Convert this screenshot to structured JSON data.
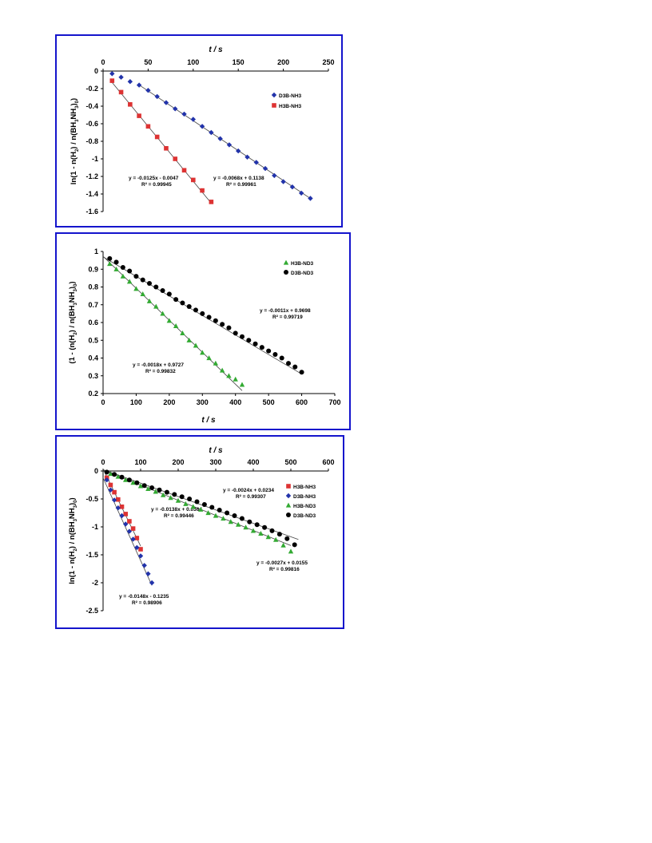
{
  "chart_data": [
    {
      "type": "scatter",
      "xlabel": "t / s",
      "ylabel": "ln(1 - n(H2) / n(BH3NH3)0)",
      "xlim": [
        0,
        250
      ],
      "ylim": [
        -1.6,
        0
      ],
      "x_ticks": [
        "0",
        "50",
        "100",
        "150",
        "200",
        "250"
      ],
      "y_ticks": [
        "0",
        "-0.2",
        "-0.4",
        "-0.6",
        "-0.8",
        "-1",
        "-1.2",
        "-1.4",
        "-1.6"
      ],
      "x_axis_position": "top",
      "legend_position": "right",
      "series": [
        {
          "name": "D3B-NH3",
          "color": "#2233aa",
          "marker": "diamond",
          "x": [
            10,
            20,
            30,
            40,
            50,
            60,
            70,
            80,
            90,
            100,
            110,
            120,
            130,
            140,
            150,
            160,
            170,
            180,
            190,
            200,
            210,
            220,
            230
          ],
          "y": [
            -0.03,
            -0.07,
            -0.12,
            -0.16,
            -0.22,
            -0.29,
            -0.36,
            -0.43,
            -0.49,
            -0.55,
            -0.63,
            -0.7,
            -0.77,
            -0.84,
            -0.91,
            -0.98,
            -1.04,
            -1.11,
            -1.19,
            -1.26,
            -1.32,
            -1.39,
            -1.45
          ],
          "fit": {
            "slope": -0.0068,
            "intercept": 0.1138,
            "x_range": [
              40,
              230
            ],
            "label": "y = -0.0068x + 0.1138",
            "r2": "R² = 0.99961"
          }
        },
        {
          "name": "H3B-NH3",
          "color": "#dd3333",
          "marker": "square",
          "x": [
            10,
            20,
            30,
            40,
            50,
            60,
            70,
            80,
            90,
            100,
            110,
            120
          ],
          "y": [
            -0.11,
            -0.24,
            -0.38,
            -0.51,
            -0.63,
            -0.75,
            -0.88,
            -1.0,
            -1.13,
            -1.24,
            -1.36,
            -1.49
          ],
          "fit": {
            "slope": -0.0125,
            "intercept": -0.0047,
            "x_range": [
              10,
              120
            ],
            "label": "y = -0.0125x - 0.0047",
            "r2": "R² = 0.99945"
          }
        }
      ]
    },
    {
      "type": "scatter",
      "xlabel": "t / s",
      "ylabel": "(1 - (n(H2) / n(BH3NH3)0)",
      "xlim": [
        0,
        700
      ],
      "ylim": [
        0.2,
        1
      ],
      "x_ticks": [
        "0",
        "100",
        "200",
        "300",
        "400",
        "500",
        "600",
        "700"
      ],
      "y_ticks": [
        "1",
        "0.9",
        "0.8",
        "0.7",
        "0.6",
        "0.5",
        "0.4",
        "0.3",
        "0.2"
      ],
      "x_axis_position": "bottom",
      "legend_position": "top-right",
      "series": [
        {
          "name": "H3B-ND3",
          "color": "#33aa33",
          "marker": "triangle",
          "x": [
            20,
            40,
            60,
            80,
            100,
            120,
            140,
            160,
            180,
            200,
            220,
            240,
            260,
            280,
            300,
            320,
            340,
            360,
            380,
            400,
            420
          ],
          "y": [
            0.93,
            0.9,
            0.86,
            0.83,
            0.79,
            0.76,
            0.72,
            0.69,
            0.65,
            0.61,
            0.58,
            0.54,
            0.5,
            0.47,
            0.43,
            0.4,
            0.37,
            0.33,
            0.3,
            0.28,
            0.25
          ],
          "fit": {
            "slope": -0.0018,
            "intercept": 0.9727,
            "x_range": [
              0,
              420
            ],
            "label": "y = -0.0018x + 0.9727",
            "r2": "R² = 0.99832"
          }
        },
        {
          "name": "D3B-ND3",
          "color": "#000000",
          "marker": "circle",
          "x": [
            20,
            40,
            60,
            80,
            100,
            120,
            140,
            160,
            180,
            200,
            220,
            240,
            260,
            280,
            300,
            320,
            340,
            360,
            380,
            400,
            420,
            440,
            460,
            480,
            500,
            520,
            540,
            560,
            580,
            600
          ],
          "y": [
            0.96,
            0.94,
            0.91,
            0.89,
            0.86,
            0.84,
            0.82,
            0.8,
            0.78,
            0.76,
            0.73,
            0.71,
            0.69,
            0.67,
            0.65,
            0.63,
            0.61,
            0.59,
            0.57,
            0.54,
            0.52,
            0.5,
            0.48,
            0.46,
            0.44,
            0.42,
            0.4,
            0.37,
            0.35,
            0.32
          ],
          "fit": {
            "slope": -0.0011,
            "intercept": 0.9698,
            "x_range": [
              0,
              600
            ],
            "label": "y = -0.0011x + 0.9698",
            "r2": "R² = 0.99719"
          }
        }
      ]
    },
    {
      "type": "scatter",
      "xlabel": "t / s",
      "ylabel": "ln(1 - n(H2) / n(BH3NH3)0)",
      "xlim": [
        0,
        600
      ],
      "ylim": [
        -2.5,
        0
      ],
      "x_ticks": [
        "0",
        "100",
        "200",
        "300",
        "400",
        "500",
        "600"
      ],
      "y_ticks": [
        "0",
        "-0.5",
        "-1",
        "-1.5",
        "-2",
        "-2.5"
      ],
      "x_axis_position": "top",
      "legend_position": "top-right",
      "series": [
        {
          "name": "H3B-NH3",
          "color": "#dd3333",
          "marker": "square",
          "x": [
            10,
            20,
            30,
            40,
            50,
            60,
            70,
            80,
            90,
            100
          ],
          "y": [
            -0.12,
            -0.25,
            -0.38,
            -0.51,
            -0.64,
            -0.77,
            -0.9,
            -1.03,
            -1.2,
            -1.4
          ],
          "fit": {
            "slope": -0.0138,
            "intercept": 0.0364,
            "x_range": [
              0,
              100
            ],
            "label": "y = -0.0138x + 0.0364",
            "r2": "R² = 0.99446"
          }
        },
        {
          "name": "D3B-NH3",
          "color": "#2233aa",
          "marker": "diamond",
          "x": [
            10,
            20,
            30,
            40,
            50,
            60,
            70,
            80,
            90,
            100,
            110,
            120,
            130
          ],
          "y": [
            -0.16,
            -0.34,
            -0.52,
            -0.66,
            -0.8,
            -0.95,
            -1.08,
            -1.22,
            -1.37,
            -1.52,
            -1.69,
            -1.84,
            -2.0
          ],
          "fit": {
            "slope": -0.0148,
            "intercept": -0.1235,
            "x_range": [
              0,
              130
            ],
            "label": "y = -0.0148x - 0.1235",
            "r2": "R² = 0.98906"
          }
        },
        {
          "name": "H3B-ND3",
          "color": "#33aa33",
          "marker": "triangle",
          "x": [
            20,
            40,
            60,
            80,
            100,
            120,
            140,
            160,
            180,
            200,
            220,
            240,
            260,
            280,
            300,
            320,
            340,
            360,
            380,
            400,
            420,
            440,
            460,
            480,
            500
          ],
          "y": [
            -0.05,
            -0.1,
            -0.16,
            -0.21,
            -0.27,
            -0.32,
            -0.37,
            -0.43,
            -0.48,
            -0.53,
            -0.59,
            -0.64,
            -0.69,
            -0.75,
            -0.8,
            -0.85,
            -0.91,
            -0.96,
            -1.01,
            -1.07,
            -1.12,
            -1.18,
            -1.23,
            -1.33,
            -1.44
          ],
          "fit": {
            "slope": -0.0027,
            "intercept": 0.0155,
            "x_range": [
              0,
              500
            ],
            "label": "y = -0.0027x + 0.0155",
            "r2": "R² = 0.99816"
          }
        },
        {
          "name": "D3B-ND3",
          "color": "#000000",
          "marker": "circle",
          "x": [
            10,
            30,
            50,
            70,
            90,
            110,
            130,
            150,
            170,
            190,
            210,
            230,
            250,
            270,
            290,
            310,
            330,
            350,
            370,
            390,
            410,
            430,
            450,
            470,
            490,
            510
          ],
          "y": [
            -0.02,
            -0.06,
            -0.11,
            -0.16,
            -0.21,
            -0.26,
            -0.3,
            -0.34,
            -0.38,
            -0.42,
            -0.46,
            -0.5,
            -0.55,
            -0.6,
            -0.65,
            -0.7,
            -0.75,
            -0.8,
            -0.85,
            -0.91,
            -0.96,
            -1.01,
            -1.07,
            -1.13,
            -1.21,
            -1.32
          ],
          "fit": {
            "slope": -0.0024,
            "intercept": 0.0234,
            "x_range": [
              0,
              520
            ],
            "label": "y = -0.0024x + 0.0234",
            "r2": "R² = 0.99307"
          }
        }
      ]
    }
  ]
}
